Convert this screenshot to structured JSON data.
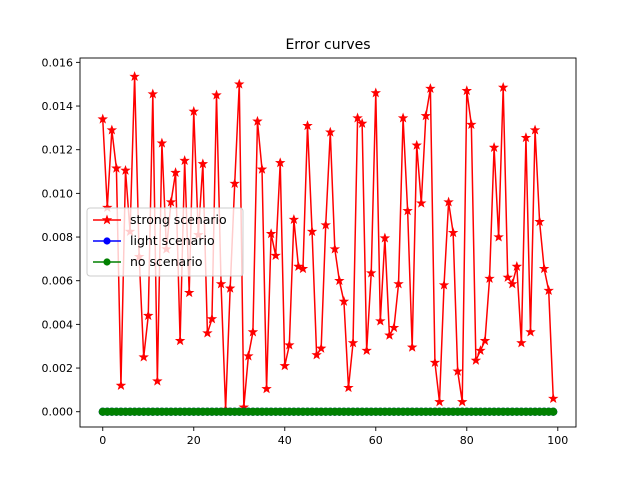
{
  "chart_data": {
    "type": "line",
    "title": "Error curves",
    "xlabel": "",
    "ylabel": "",
    "xlim": [
      -5,
      104
    ],
    "ylim": [
      -0.0007,
      0.0162
    ],
    "xticks": [
      0,
      20,
      40,
      60,
      80,
      100
    ],
    "xtick_labels": [
      "0",
      "20",
      "40",
      "60",
      "80",
      "100"
    ],
    "yticks": [
      0.0,
      0.002,
      0.004,
      0.006,
      0.008,
      0.01,
      0.012,
      0.014,
      0.016
    ],
    "ytick_labels": [
      "0.000",
      "0.002",
      "0.004",
      "0.006",
      "0.008",
      "0.010",
      "0.012",
      "0.014",
      "0.016"
    ],
    "grid": false,
    "legend_placement": "center-left",
    "series": [
      {
        "name": "strong scenario",
        "color": "#ff0000",
        "marker": "star",
        "values": [
          0.0134,
          0.00935,
          0.0129,
          0.01115,
          0.0012,
          0.01105,
          0.00825,
          0.01535,
          0.0071,
          0.0025,
          0.0044,
          0.01455,
          0.0014,
          0.0123,
          0.00745,
          0.0096,
          0.01095,
          0.00325,
          0.0115,
          0.00545,
          0.01375,
          0.0081,
          0.01135,
          0.0036,
          0.00425,
          0.0145,
          0.00585,
          0.0001,
          0.00565,
          0.01045,
          0.015,
          0.0002,
          0.00255,
          0.00365,
          0.0133,
          0.0111,
          0.00105,
          0.00815,
          0.00715,
          0.0114,
          0.0021,
          0.00305,
          0.0088,
          0.00665,
          0.00655,
          0.0131,
          0.00825,
          0.0026,
          0.0029,
          0.00855,
          0.0128,
          0.00745,
          0.006,
          0.00505,
          0.0011,
          0.00315,
          0.01345,
          0.0132,
          0.0028,
          0.00635,
          0.0146,
          0.00415,
          0.00795,
          0.0035,
          0.00385,
          0.00585,
          0.01345,
          0.0092,
          0.00295,
          0.0122,
          0.00955,
          0.01355,
          0.0148,
          0.00225,
          0.00045,
          0.0058,
          0.0096,
          0.0082,
          0.00185,
          0.00045,
          0.0147,
          0.01315,
          0.00235,
          0.0028,
          0.00325,
          0.0061,
          0.0121,
          0.008,
          0.01485,
          0.00615,
          0.00585,
          0.00665,
          0.00315,
          0.01255,
          0.00365,
          0.0129,
          0.0087,
          0.00655,
          0.00555,
          0.0006
        ]
      },
      {
        "name": "light scenario",
        "color": "#0000ff",
        "marker": "circle",
        "values": [
          0,
          0,
          0,
          0,
          0,
          0,
          0,
          0,
          0,
          0,
          0,
          0,
          0,
          0,
          0,
          0,
          0,
          0,
          0,
          0,
          0,
          0,
          0,
          0,
          0,
          0,
          0,
          0,
          0,
          0,
          0,
          0,
          0,
          0,
          0,
          0,
          0,
          0,
          0,
          0,
          0,
          0,
          0,
          0,
          0,
          0,
          0,
          0,
          0,
          0,
          0,
          0,
          0,
          0,
          0,
          0,
          0,
          0,
          0,
          0,
          0,
          0,
          0,
          0,
          0,
          0,
          0,
          0,
          0,
          0,
          0,
          0,
          0,
          0,
          0,
          0,
          0,
          0,
          0,
          0,
          0,
          0,
          0,
          0,
          0,
          0,
          0,
          0,
          0,
          0,
          0,
          0,
          0,
          0,
          0,
          0,
          0,
          0,
          0,
          0
        ]
      },
      {
        "name": "no scenario",
        "color": "#008000",
        "marker": "circle",
        "values": [
          0,
          0,
          0,
          0,
          0,
          0,
          0,
          0,
          0,
          0,
          0,
          0,
          0,
          0,
          0,
          0,
          0,
          0,
          0,
          0,
          0,
          0,
          0,
          0,
          0,
          0,
          0,
          0,
          0,
          0,
          0,
          0,
          0,
          0,
          0,
          0,
          0,
          0,
          0,
          0,
          0,
          0,
          0,
          0,
          0,
          0,
          0,
          0,
          0,
          0,
          0,
          0,
          0,
          0,
          0,
          0,
          0,
          0,
          0,
          0,
          0,
          0,
          0,
          0,
          0,
          0,
          0,
          0,
          0,
          0,
          0,
          0,
          0,
          0,
          0,
          0,
          0,
          0,
          0,
          0,
          0,
          0,
          0,
          0,
          0,
          0,
          0,
          0,
          0,
          0,
          0,
          0,
          0,
          0,
          0,
          0,
          0,
          0,
          0,
          0
        ]
      }
    ]
  }
}
